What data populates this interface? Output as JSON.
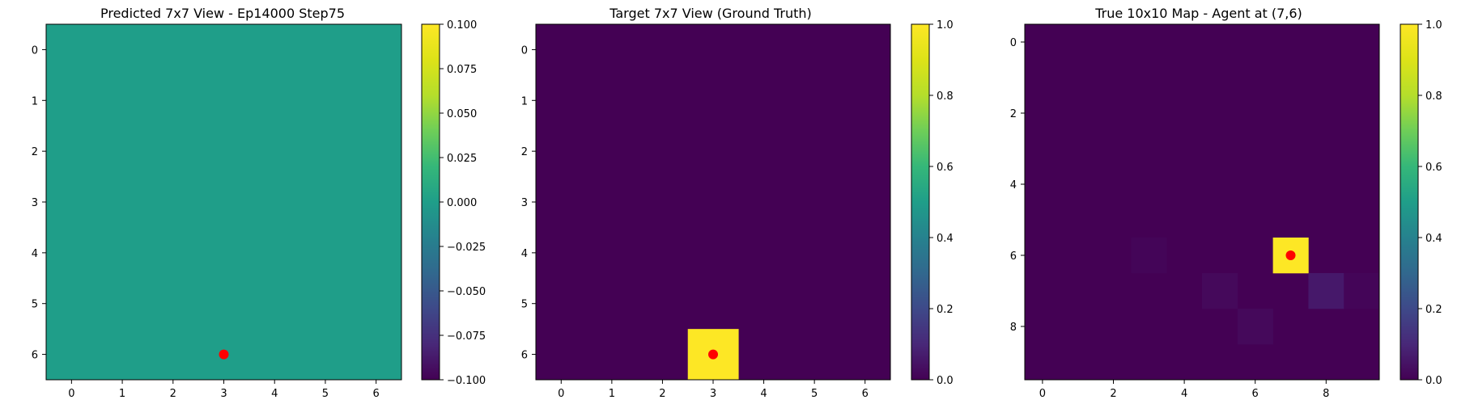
{
  "chart_data": [
    {
      "type": "heatmap",
      "title": "Predicted 7x7 View - Ep14000 Step75",
      "rows": 7,
      "cols": 7,
      "fill_value": 0.0,
      "cells": [],
      "marker": {
        "row": 6,
        "col": 3
      },
      "x_ticks": [
        0,
        1,
        2,
        3,
        4,
        5,
        6
      ],
      "y_ticks": [
        0,
        1,
        2,
        3,
        4,
        5,
        6
      ],
      "clim": [
        -0.1,
        0.1
      ],
      "colorbar_ticks": [
        "0.100",
        "0.075",
        "0.050",
        "0.025",
        "0.000",
        "−0.025",
        "−0.050",
        "−0.075",
        "−0.100"
      ],
      "colorbar_values": [
        0.1,
        0.075,
        0.05,
        0.025,
        0.0,
        -0.025,
        -0.05,
        -0.075,
        -0.1
      ]
    },
    {
      "type": "heatmap",
      "title": "Target 7x7 View (Ground Truth)",
      "rows": 7,
      "cols": 7,
      "fill_value": 0.0,
      "cells": [
        {
          "row": 6,
          "col": 3,
          "value": 1.0
        }
      ],
      "marker": {
        "row": 6,
        "col": 3
      },
      "x_ticks": [
        0,
        1,
        2,
        3,
        4,
        5,
        6
      ],
      "y_ticks": [
        0,
        1,
        2,
        3,
        4,
        5,
        6
      ],
      "clim": [
        0,
        1
      ],
      "colorbar_ticks": [
        "1.0",
        "0.8",
        "0.6",
        "0.4",
        "0.2",
        "0.0"
      ],
      "colorbar_values": [
        1.0,
        0.8,
        0.6,
        0.4,
        0.2,
        0.0
      ]
    },
    {
      "type": "heatmap",
      "title": "True 10x10 Map - Agent at (7,6)",
      "rows": 10,
      "cols": 10,
      "fill_value": 0.0,
      "cells": [
        {
          "row": 6,
          "col": 7,
          "value": 1.0
        },
        {
          "row": 7,
          "col": 8,
          "value": 0.06
        },
        {
          "row": 7,
          "col": 5,
          "value": 0.02
        },
        {
          "row": 8,
          "col": 6,
          "value": 0.02
        },
        {
          "row": 6,
          "col": 3,
          "value": 0.01
        },
        {
          "row": 7,
          "col": 9,
          "value": 0.01
        }
      ],
      "marker": {
        "row": 6,
        "col": 7
      },
      "x_ticks": [
        0,
        2,
        4,
        6,
        8
      ],
      "y_ticks": [
        0,
        2,
        4,
        6,
        8
      ],
      "clim": [
        0,
        1
      ],
      "colorbar_ticks": [
        "1.0",
        "0.8",
        "0.6",
        "0.4",
        "0.2",
        "0.0"
      ],
      "colorbar_values": [
        1.0,
        0.8,
        0.6,
        0.4,
        0.2,
        0.0
      ]
    }
  ],
  "colors": {
    "marker": "#ff0000",
    "axis": "#000000"
  },
  "colormap": "viridis"
}
